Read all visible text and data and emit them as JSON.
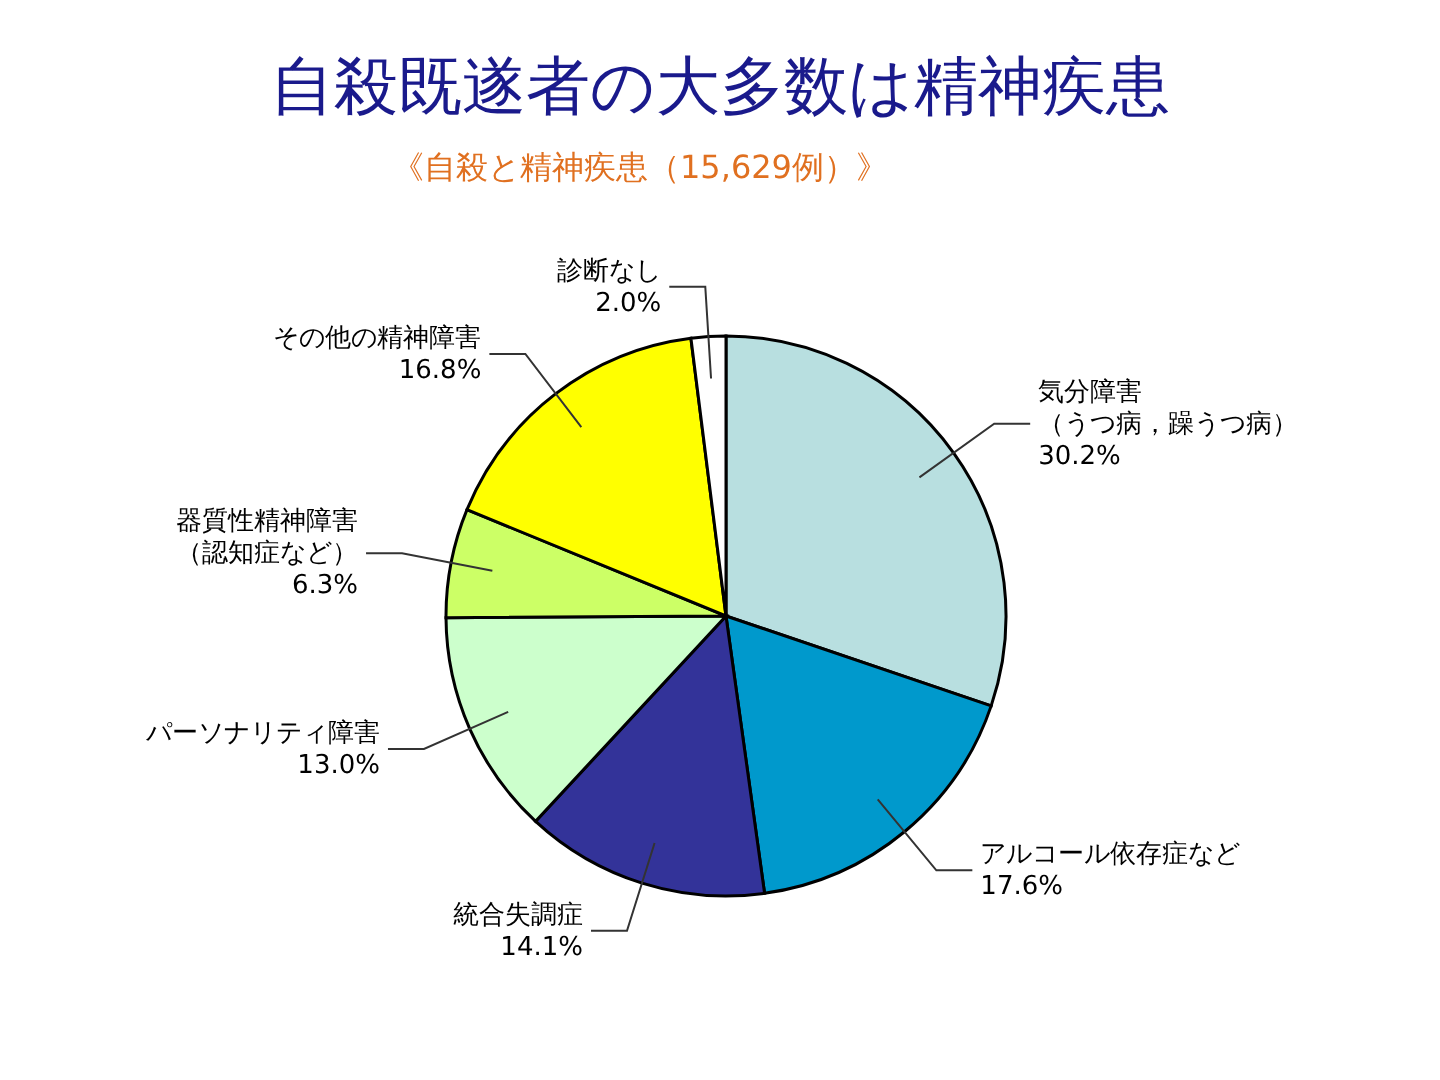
{
  "chart_data": {
    "type": "pie",
    "title": "自殺既遂者の大多数は精神疾患",
    "subtitle": "《自殺と精神疾患（15,629例）》",
    "categories": [
      "気分障害（うつ病，躁うつ病）",
      "アルコール依存症など",
      "統合失調症",
      "パーソナリティ障害",
      "器質性精神障害（認知症など）",
      "その他の精神障害",
      "診断なし"
    ],
    "values": [
      30.2,
      17.6,
      14.1,
      13.0,
      6.3,
      16.8,
      2.0
    ],
    "value_labels": [
      "30.2%",
      "17.6%",
      "14.1%",
      "13.0%",
      "6.3%",
      "16.8%",
      "2.0%"
    ],
    "colors": [
      "#b8dfe0",
      "#0099cc",
      "#333399",
      "#ccffcc",
      "#ccff66",
      "#ffff00",
      "#ffffff"
    ]
  }
}
